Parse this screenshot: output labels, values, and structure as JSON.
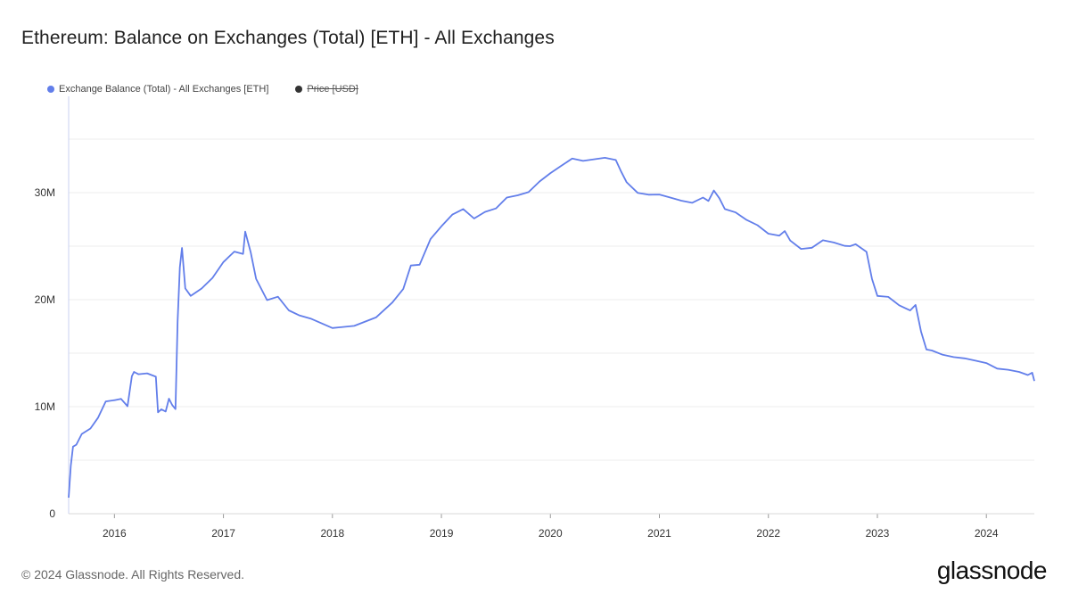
{
  "title": "Ethereum: Balance on Exchanges (Total) [ETH] - All Exchanges",
  "legend": [
    {
      "label": "Exchange Balance (Total) - All Exchanges [ETH]",
      "color": "#627eea",
      "active": true
    },
    {
      "label": "Price [USD]",
      "color": "#333333",
      "active": false
    }
  ],
  "footer": {
    "copyright": "© 2024 Glassnode. All Rights Reserved.",
    "logo": "glassnode"
  },
  "chart_data": {
    "type": "line",
    "title": "Ethereum: Balance on Exchanges (Total) [ETH] - All Exchanges",
    "xlabel": "",
    "ylabel": "",
    "xlim": [
      2015.58,
      2024.44
    ],
    "ylim": [
      0,
      39000000
    ],
    "x_ticks": [
      2016,
      2017,
      2018,
      2019,
      2020,
      2021,
      2022,
      2023,
      2024
    ],
    "x_tick_labels": [
      "2016",
      "2017",
      "2018",
      "2019",
      "2020",
      "2021",
      "2022",
      "2023",
      "2024"
    ],
    "y_ticks": [
      0,
      10000000,
      20000000,
      30000000
    ],
    "y_tick_labels": [
      "0",
      "10M",
      "20M",
      "30M"
    ],
    "y_gridlines": [
      5000000,
      10000000,
      15000000,
      20000000,
      25000000,
      30000000,
      35000000
    ],
    "grid": true,
    "legend_position": "top-left",
    "series": [
      {
        "name": "Exchange Balance (Total) - All Exchanges [ETH]",
        "color": "#627eea",
        "x": [
          2015.58,
          2015.6,
          2015.62,
          2015.65,
          2015.7,
          2015.78,
          2015.85,
          2015.92,
          2016.0,
          2016.06,
          2016.12,
          2016.16,
          2016.18,
          2016.22,
          2016.3,
          2016.38,
          2016.4,
          2016.43,
          2016.47,
          2016.5,
          2016.53,
          2016.56,
          2016.58,
          2016.6,
          2016.62,
          2016.65,
          2016.7,
          2016.8,
          2016.9,
          2017.0,
          2017.1,
          2017.18,
          2017.2,
          2017.25,
          2017.3,
          2017.4,
          2017.5,
          2017.6,
          2017.7,
          2017.8,
          2018.0,
          2018.2,
          2018.4,
          2018.55,
          2018.65,
          2018.72,
          2018.8,
          2018.9,
          2019.0,
          2019.1,
          2019.2,
          2019.3,
          2019.4,
          2019.5,
          2019.6,
          2019.7,
          2019.8,
          2019.9,
          2020.0,
          2020.1,
          2020.2,
          2020.3,
          2020.5,
          2020.6,
          2020.65,
          2020.7,
          2020.8,
          2020.9,
          2021.0,
          2021.1,
          2021.2,
          2021.3,
          2021.4,
          2021.45,
          2021.5,
          2021.55,
          2021.6,
          2021.7,
          2021.8,
          2021.9,
          2022.0,
          2022.1,
          2022.15,
          2022.2,
          2022.3,
          2022.4,
          2022.5,
          2022.6,
          2022.7,
          2022.75,
          2022.8,
          2022.9,
          2022.95,
          2023.0,
          2023.1,
          2023.2,
          2023.3,
          2023.35,
          2023.4,
          2023.45,
          2023.5,
          2023.6,
          2023.7,
          2023.8,
          2023.9,
          2024.0,
          2024.1,
          2024.2,
          2024.3,
          2024.38,
          2024.42,
          2024.44
        ],
        "y": [
          1500000,
          4500000,
          6300000,
          6500000,
          7500000,
          8000000,
          9000000,
          10500000,
          10600000,
          10700000,
          10000000,
          12800000,
          13200000,
          13000000,
          13100000,
          12800000,
          9500000,
          9800000,
          9600000,
          10800000,
          10200000,
          9800000,
          18000000,
          23000000,
          24800000,
          21000000,
          20300000,
          21000000,
          22000000,
          23500000,
          24500000,
          24300000,
          26400000,
          24500000,
          22000000,
          20000000,
          20300000,
          19000000,
          18500000,
          18200000,
          17300000,
          17500000,
          18300000,
          19700000,
          21000000,
          23200000,
          23300000,
          25700000,
          26900000,
          28000000,
          28500000,
          27600000,
          28200000,
          28500000,
          29500000,
          29700000,
          30000000,
          31000000,
          31800000,
          32500000,
          33200000,
          33000000,
          33300000,
          33100000,
          32000000,
          31000000,
          30000000,
          29800000,
          29800000,
          29500000,
          29200000,
          29000000,
          29500000,
          29200000,
          30200000,
          29500000,
          28500000,
          28200000,
          27500000,
          27000000,
          26200000,
          26000000,
          26400000,
          25500000,
          24700000,
          24800000,
          25500000,
          25300000,
          25000000,
          25000000,
          25200000,
          24500000,
          22000000,
          20400000,
          20300000,
          19500000,
          19000000,
          19500000,
          17000000,
          15300000,
          15200000,
          14800000,
          14600000,
          14500000,
          14300000,
          14100000,
          13600000,
          13500000,
          13300000,
          13000000,
          13200000,
          12400000
        ]
      }
    ]
  }
}
